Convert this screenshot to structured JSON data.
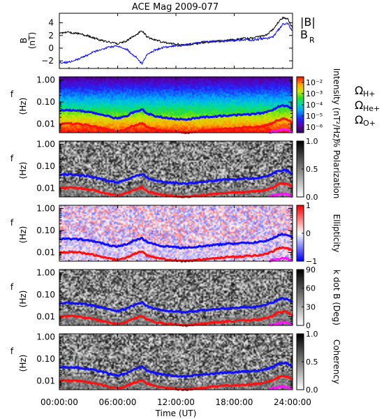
{
  "title": "ACE Mag 2009-077",
  "xaxis": {
    "label": "Time (UT)",
    "ticks": [
      "00:00:00",
      "06:00:00",
      "12:00:00",
      "18:00:00",
      "24:00:00"
    ],
    "tick_hours": [
      0,
      6,
      12,
      18,
      24
    ],
    "range_hours": [
      0,
      24
    ]
  },
  "colors": {
    "B_total": "#000000",
    "B_R": "#1010ff",
    "omega_H": "#1010ff",
    "omega_He": "#ff1010",
    "omega_O": "#ff10ff"
  },
  "legend_top": {
    "b_total": "|B|",
    "b_r": "B",
    "b_r_sub": "R"
  },
  "legend_gyro": {
    "h": {
      "sym": "Ω",
      "sub": "H+"
    },
    "he": {
      "sym": "Ω",
      "sub": "He+"
    },
    "o": {
      "sym": "Ω",
      "sub": "O+"
    }
  },
  "freq_axis": {
    "label_top": "f",
    "label_bottom": "(Hz)",
    "ticks": [
      "1.00",
      "0.10",
      "0.01"
    ],
    "tick_values": [
      1.0,
      0.1,
      0.01
    ],
    "range": [
      0.004,
      1.4
    ],
    "scale": "log"
  },
  "panels": [
    {
      "id": "intensity",
      "cbar_label": "Intensity (nT²/Hz)",
      "cbar_type": "rainbow",
      "cbar_ticks": [
        "10⁻²",
        "10⁻³",
        "10⁻⁴",
        "10⁻⁵",
        "10⁻⁶"
      ],
      "cbar_range_log10": [
        -6.5,
        -1.5
      ]
    },
    {
      "id": "polarization",
      "cbar_label": "% Polarization",
      "cbar_type": "gray",
      "cbar_ticks": [
        "1.0",
        "0.5",
        "0.0"
      ],
      "cbar_range": [
        0,
        1
      ]
    },
    {
      "id": "ellipticity",
      "cbar_label": "Ellipticity",
      "cbar_type": "bwr",
      "cbar_ticks": [
        "1",
        "0",
        "−1"
      ],
      "cbar_range": [
        -1,
        1
      ]
    },
    {
      "id": "kdotb",
      "cbar_label": "k dot B (Deg)",
      "cbar_type": "gray",
      "cbar_ticks": [
        "90",
        "60",
        "30",
        "0"
      ],
      "cbar_range": [
        0,
        90
      ]
    },
    {
      "id": "coherency",
      "cbar_label": "Coherency",
      "cbar_type": "gray",
      "cbar_ticks": [
        "1.0",
        "0.5",
        "0.0"
      ],
      "cbar_range": [
        0,
        1
      ]
    }
  ],
  "chart_data": [
    {
      "type": "line",
      "title": "ACE Mag 2009-077",
      "xlabel": "Time (UT)",
      "ylabel": "B (nT)",
      "y_ticks": [
        "4",
        "2",
        "0",
        "-2"
      ],
      "y_tick_values": [
        4,
        2,
        0,
        -2
      ],
      "ylim": [
        -3.2,
        5.5
      ],
      "xlim": [
        0,
        24
      ],
      "x": [
        0,
        1,
        2,
        3,
        4,
        5,
        6,
        7,
        7.5,
        8,
        8.5,
        9,
        10,
        11,
        12,
        13,
        14,
        15,
        16,
        17,
        18,
        19,
        20,
        21,
        21.5,
        22,
        22.5,
        23,
        23.5,
        24
      ],
      "series": [
        {
          "name": "|B|",
          "values": [
            2.4,
            2.5,
            2.3,
            1.9,
            1.4,
            1.0,
            0.7,
            1.2,
            1.8,
            2.2,
            2.8,
            1.8,
            1.2,
            0.8,
            0.6,
            0.5,
            0.7,
            0.9,
            1.1,
            1.2,
            1.3,
            1.5,
            1.6,
            1.9,
            2.3,
            3.0,
            4.0,
            4.8,
            4.6,
            3.2
          ]
        },
        {
          "name": "B",
          "values": [
            -2.3,
            -2.2,
            -1.7,
            -1.0,
            -0.3,
            0.1,
            0.4,
            -0.2,
            -1.0,
            -1.5,
            -2.5,
            -1.0,
            -0.2,
            0.2,
            0.4,
            0.5,
            0.8,
            1.0,
            1.1,
            1.1,
            1.2,
            1.3,
            1.3,
            1.5,
            1.6,
            1.8,
            2.8,
            3.8,
            3.9,
            2.6
          ]
        }
      ]
    },
    {
      "type": "line",
      "xlabel": "Time (UT)",
      "ylabel": "f (Hz)",
      "yscale": "log",
      "ylim": [
        0.004,
        1.4
      ],
      "xlim": [
        0,
        24
      ],
      "x": [
        0,
        1,
        2,
        3,
        4,
        5,
        6,
        7,
        7.5,
        8,
        8.5,
        9,
        10,
        11,
        12,
        13,
        14,
        15,
        16,
        17,
        18,
        19,
        20,
        21,
        21.5,
        22,
        22.5,
        23,
        23.5,
        24
      ],
      "series": [
        {
          "name": "ΩH+",
          "values": [
            0.04,
            0.042,
            0.04,
            0.035,
            0.028,
            0.022,
            0.018,
            0.024,
            0.032,
            0.037,
            0.045,
            0.03,
            0.022,
            0.019,
            0.017,
            0.016,
            0.018,
            0.02,
            0.022,
            0.024,
            0.025,
            0.027,
            0.028,
            0.032,
            0.037,
            0.045,
            0.06,
            0.068,
            0.062,
            0.045
          ]
        },
        {
          "name": "ΩHe+",
          "values": [
            0.01,
            0.0105,
            0.01,
            0.0088,
            0.007,
            0.0055,
            0.0045,
            0.006,
            0.008,
            0.0092,
            0.0112,
            0.0075,
            0.0055,
            0.0048,
            0.0043,
            0.004,
            0.0045,
            0.005,
            0.0055,
            0.006,
            0.0063,
            0.0068,
            0.007,
            0.008,
            0.0092,
            0.0112,
            0.015,
            0.017,
            0.0155,
            0.0112
          ]
        },
        {
          "name": "ΩO+",
          "values": [
            null,
            null,
            null,
            null,
            null,
            null,
            null,
            null,
            null,
            null,
            null,
            null,
            null,
            null,
            null,
            null,
            null,
            null,
            null,
            null,
            null,
            null,
            null,
            null,
            0.004,
            0.0046,
            0.005,
            0.0055,
            0.0052,
            0.0042
          ]
        }
      ]
    }
  ]
}
